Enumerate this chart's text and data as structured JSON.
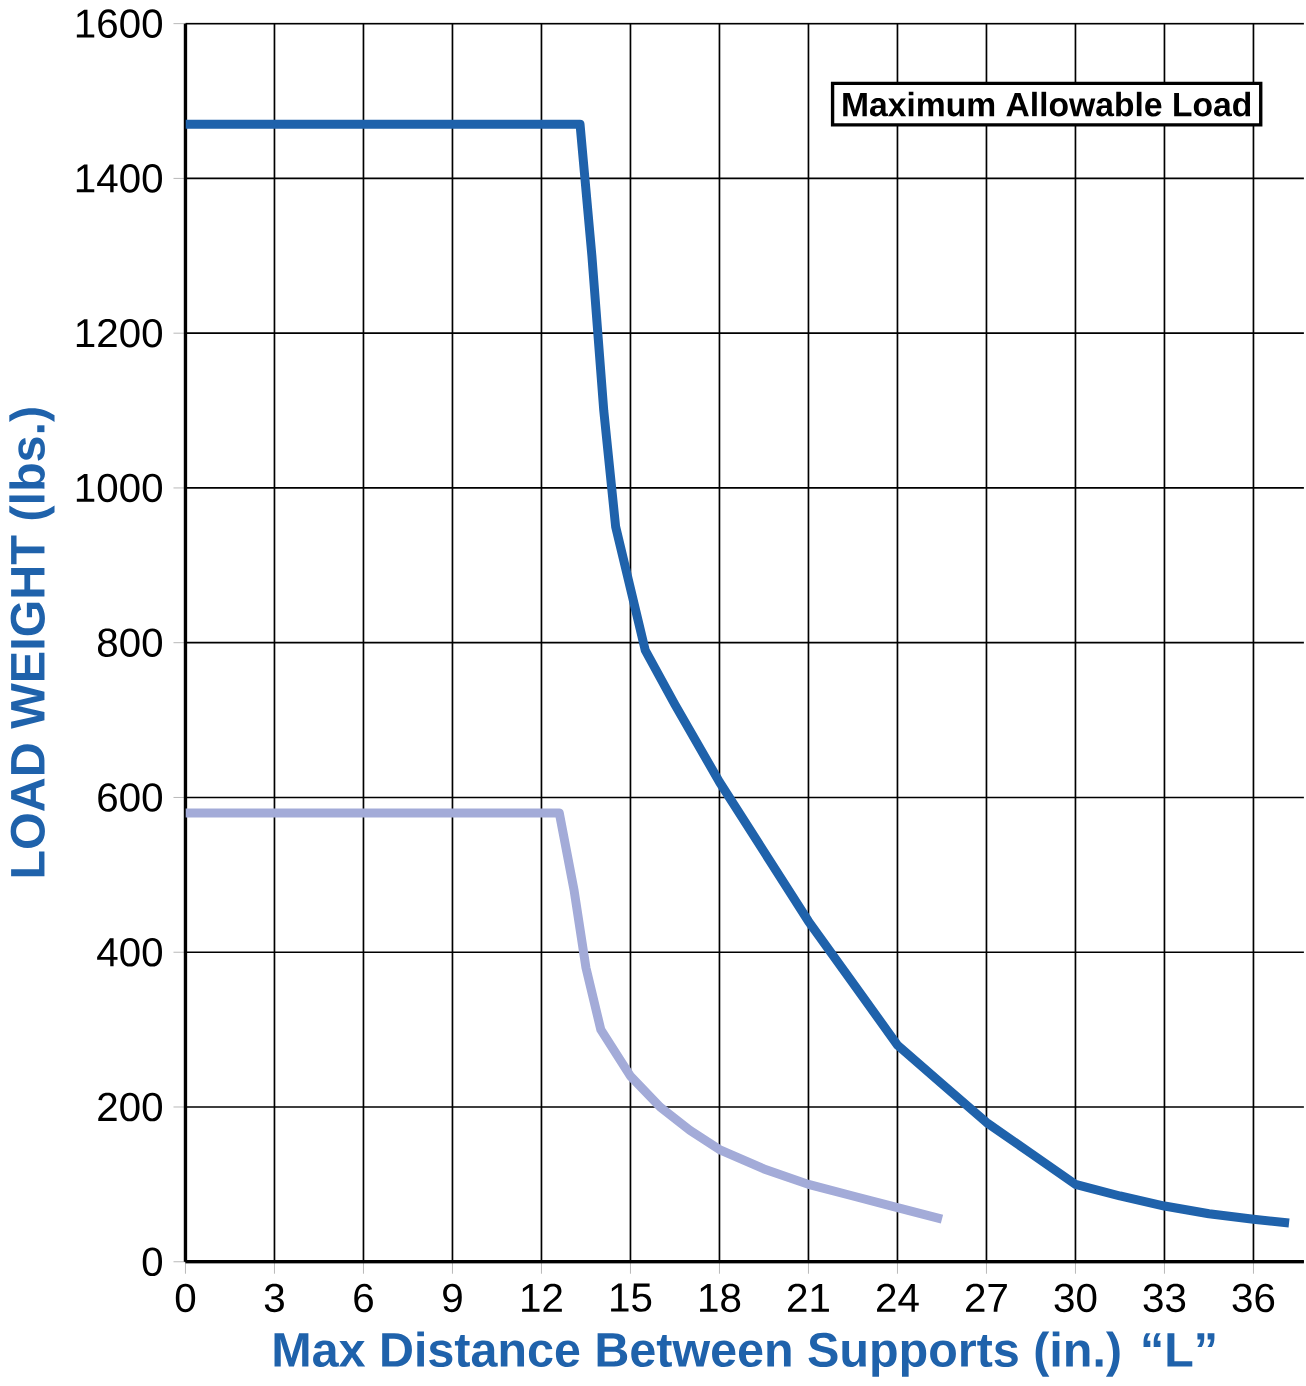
{
  "chart_data": {
    "type": "line",
    "xlabel": "Max Distance Between Supports (in.) “L”",
    "ylabel": "LOAD WEIGHT (lbs.)",
    "annotations": [
      "Maximum Allowable Load"
    ],
    "xlim": [
      0,
      37.7
    ],
    "ylim": [
      0,
      1600
    ],
    "xticks": [
      0,
      3,
      6,
      9,
      12,
      15,
      18,
      21,
      24,
      27,
      30,
      33,
      36
    ],
    "yticks": [
      0,
      200,
      400,
      600,
      800,
      1000,
      1200,
      1400,
      1600
    ],
    "grid": true,
    "series": [
      {
        "color": "#1f62ab",
        "x": [
          0,
          13.3,
          13.7,
          14.1,
          14.5,
          15,
          15.5,
          16.5,
          18,
          19.5,
          21,
          22.5,
          24,
          25.5,
          27,
          28.5,
          30,
          31.5,
          33,
          34.5,
          36,
          37.2
        ],
        "values": [
          1470,
          1470,
          1300,
          1100,
          950,
          870,
          790,
          720,
          620,
          530,
          440,
          360,
          280,
          230,
          180,
          140,
          100,
          85,
          72,
          62,
          55,
          50
        ]
      },
      {
        "color": "#a3abd8",
        "x": [
          0,
          12.6,
          13.1,
          13.5,
          14,
          15,
          16,
          17,
          18,
          19.5,
          21,
          22.5,
          24,
          25.5
        ],
        "values": [
          580,
          580,
          480,
          380,
          300,
          240,
          200,
          170,
          145,
          120,
          100,
          85,
          70,
          55
        ]
      }
    ]
  }
}
